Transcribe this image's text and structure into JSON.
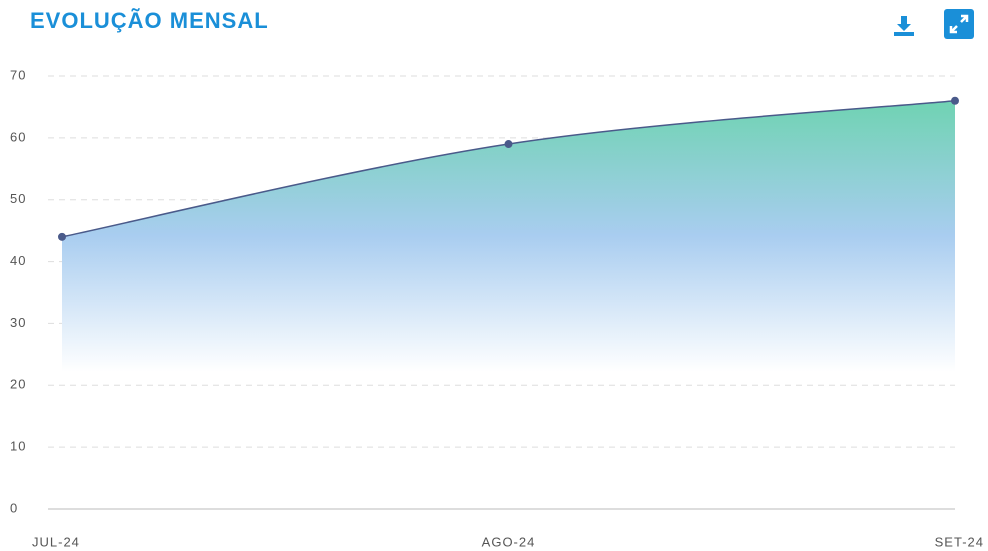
{
  "chart_data": {
    "type": "area",
    "title": "EVOLUÇÃO MENSAL",
    "categories": [
      "JUL-24",
      "AGO-24",
      "SET-24"
    ],
    "values": [
      44,
      59,
      66
    ],
    "color": "#4a5a8a",
    "fill_top": "#6fd3b2",
    "fill_mid": "#a9cdf0",
    "ylim": [
      0,
      70
    ],
    "yticks": [
      0,
      10,
      20,
      30,
      40,
      50,
      60,
      70
    ],
    "grid": true
  }
}
